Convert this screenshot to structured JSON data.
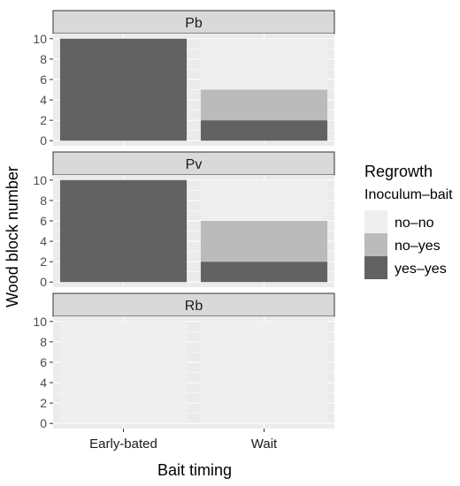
{
  "chart_data": {
    "type": "bar",
    "stacked": true,
    "facet_by": "row",
    "facets": [
      {
        "label": "Pb",
        "categories": [
          "Early-bated",
          "Wait"
        ],
        "series": [
          {
            "name": "yes–yes",
            "values": [
              10,
              2
            ]
          },
          {
            "name": "no–yes",
            "values": [
              0,
              3
            ]
          },
          {
            "name": "no–no",
            "values": [
              0,
              5
            ]
          }
        ]
      },
      {
        "label": "Pv",
        "categories": [
          "Early-bated",
          "Wait"
        ],
        "series": [
          {
            "name": "yes–yes",
            "values": [
              10,
              2
            ]
          },
          {
            "name": "no–yes",
            "values": [
              0,
              4
            ]
          },
          {
            "name": "no–no",
            "values": [
              0,
              4
            ]
          }
        ]
      },
      {
        "label": "Rb",
        "categories": [
          "Early-bated",
          "Wait"
        ],
        "series": [
          {
            "name": "yes–yes",
            "values": [
              0,
              0
            ]
          },
          {
            "name": "no–yes",
            "values": [
              0,
              0
            ]
          },
          {
            "name": "no–no",
            "values": [
              10,
              10
            ]
          }
        ]
      }
    ],
    "xlabel": "Bait timing",
    "ylabel": "Wood block number",
    "ylim": [
      0,
      10
    ],
    "yticks": [
      0,
      2,
      4,
      6,
      8,
      10
    ],
    "grid": true,
    "legend": {
      "title": "Regrowth",
      "subtitle": "Inoculum–bait",
      "placement": "right",
      "items": [
        {
          "name": "no–no",
          "color": "#efefef"
        },
        {
          "name": "no–yes",
          "color": "#bbbbbb"
        },
        {
          "name": "yes–yes",
          "color": "#626262"
        }
      ]
    },
    "colors": {
      "panel_background": "#ebebeb",
      "grid": "#ffffff",
      "strip_background": "#d9d9d9",
      "strip_border": "#333333"
    }
  }
}
